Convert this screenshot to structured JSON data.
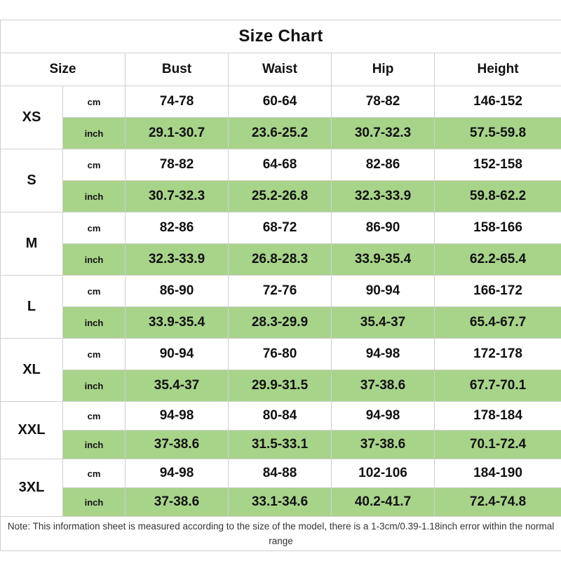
{
  "title": "Size Chart",
  "headers": {
    "size": "Size",
    "bust": "Bust",
    "waist": "Waist",
    "hip": "Hip",
    "height": "Height"
  },
  "units": {
    "cm": "cm",
    "inch": "inch"
  },
  "colors": {
    "inch_row_bg": "#a8d48a",
    "border": "#cfcfcf"
  },
  "sizes": [
    {
      "size": "XS",
      "cm": {
        "bust": "74-78",
        "waist": "60-64",
        "hip": "78-82",
        "height": "146-152"
      },
      "inch": {
        "bust": "29.1-30.7",
        "waist": "23.6-25.2",
        "hip": "30.7-32.3",
        "height": "57.5-59.8"
      }
    },
    {
      "size": "S",
      "cm": {
        "bust": "78-82",
        "waist": "64-68",
        "hip": "82-86",
        "height": "152-158"
      },
      "inch": {
        "bust": "30.7-32.3",
        "waist": "25.2-26.8",
        "hip": "32.3-33.9",
        "height": "59.8-62.2"
      }
    },
    {
      "size": "M",
      "cm": {
        "bust": "82-86",
        "waist": "68-72",
        "hip": "86-90",
        "height": "158-166"
      },
      "inch": {
        "bust": "32.3-33.9",
        "waist": "26.8-28.3",
        "hip": "33.9-35.4",
        "height": "62.2-65.4"
      }
    },
    {
      "size": "L",
      "cm": {
        "bust": "86-90",
        "waist": "72-76",
        "hip": "90-94",
        "height": "166-172"
      },
      "inch": {
        "bust": "33.9-35.4",
        "waist": "28.3-29.9",
        "hip": "35.4-37",
        "height": "65.4-67.7"
      }
    },
    {
      "size": "XL",
      "cm": {
        "bust": "90-94",
        "waist": "76-80",
        "hip": "94-98",
        "height": "172-178"
      },
      "inch": {
        "bust": "35.4-37",
        "waist": "29.9-31.5",
        "hip": "37-38.6",
        "height": "67.7-70.1"
      }
    },
    {
      "size": "XXL",
      "cm": {
        "bust": "94-98",
        "waist": "80-84",
        "hip": "94-98",
        "height": "178-184"
      },
      "inch": {
        "bust": "37-38.6",
        "waist": "31.5-33.1",
        "hip": "37-38.6",
        "height": "70.1-72.4"
      }
    },
    {
      "size": "3XL",
      "cm": {
        "bust": "94-98",
        "waist": "84-88",
        "hip": "102-106",
        "height": "184-190"
      },
      "inch": {
        "bust": "37-38.6",
        "waist": "33.1-34.6",
        "hip": "40.2-41.7",
        "height": "72.4-74.8"
      }
    }
  ],
  "note": "Note: This information sheet is measured according to the size of the model, there is a 1-3cm/0.39-1.18inch error within the normal range"
}
